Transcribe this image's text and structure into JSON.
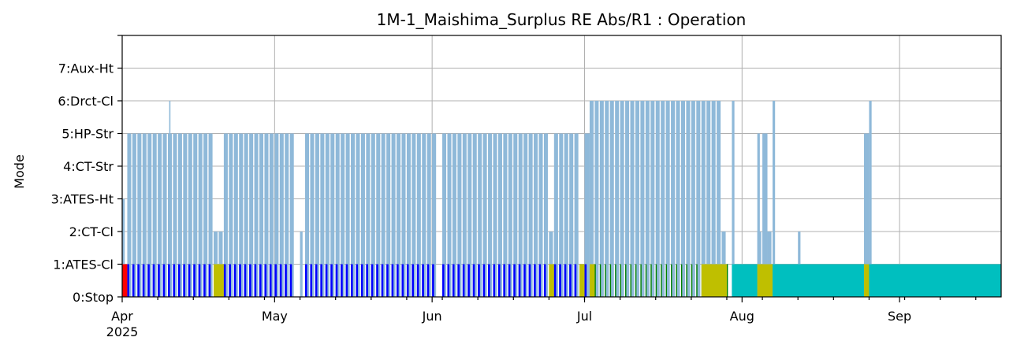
{
  "chart_data": {
    "type": "bar",
    "title": "1M-1_Maishima_Surplus RE Abs/R1 : Operation",
    "xlabel": "",
    "ylabel": "Mode",
    "ylim": [
      0,
      8
    ],
    "xlim": [
      "2025-04-01",
      "2025-09-21"
    ],
    "grid": true,
    "y_ticks": [
      {
        "value": 0,
        "label": "0:Stop"
      },
      {
        "value": 1,
        "label": "1:ATES-Cl"
      },
      {
        "value": 2,
        "label": "2:CT-Cl"
      },
      {
        "value": 3,
        "label": "3:ATES-Ht"
      },
      {
        "value": 4,
        "label": "4:CT-Str"
      },
      {
        "value": 5,
        "label": "5:HP-Str"
      },
      {
        "value": 6,
        "label": "6:Drct-Cl"
      },
      {
        "value": 7,
        "label": "7:Aux-Ht"
      }
    ],
    "x_ticks": [
      {
        "date": "2025-04-01",
        "label": "Apr",
        "sublabel": "2025"
      },
      {
        "date": "2025-05-01",
        "label": "May",
        "sublabel": ""
      },
      {
        "date": "2025-06-01",
        "label": "Jun",
        "sublabel": ""
      },
      {
        "date": "2025-07-01",
        "label": "Jul",
        "sublabel": ""
      },
      {
        "date": "2025-08-01",
        "label": "Aug",
        "sublabel": ""
      },
      {
        "date": "2025-09-01",
        "label": "Sep",
        "sublabel": ""
      }
    ],
    "colors": {
      "operation_fill": "#8fb9d9",
      "red": "#ff0000",
      "blue": "#0000ff",
      "olive": "#bfbf00",
      "green": "#008000",
      "cyan": "#00bfbf"
    },
    "series": [
      {
        "mode_blocks": [
          {
            "start": "2025-04-01",
            "end": "2025-04-01T12:00",
            "mode": 3
          },
          {
            "start": "2025-04-02",
            "end": "2025-04-11",
            "mode": 5
          },
          {
            "start": "2025-04-10T06:00",
            "end": "2025-04-10T12:00",
            "mode": 6
          },
          {
            "start": "2025-04-11",
            "end": "2025-04-19",
            "mode": 5
          },
          {
            "start": "2025-04-19",
            "end": "2025-04-21",
            "mode": 2
          },
          {
            "start": "2025-04-21",
            "end": "2025-05-05",
            "mode": 5
          },
          {
            "start": "2025-05-06",
            "end": "2025-05-06T12:00",
            "mode": 2
          },
          {
            "start": "2025-05-07",
            "end": "2025-06-02",
            "mode": 5
          },
          {
            "start": "2025-06-03",
            "end": "2025-06-24",
            "mode": 5
          },
          {
            "start": "2025-06-24",
            "end": "2025-06-30",
            "mode": 2
          },
          {
            "start": "2025-06-25",
            "end": "2025-06-30",
            "mode": 5
          },
          {
            "start": "2025-07-01",
            "end": "2025-07-02",
            "mode": 5
          },
          {
            "start": "2025-07-02",
            "end": "2025-07-08",
            "mode": 6
          },
          {
            "start": "2025-07-08",
            "end": "2025-07-24",
            "mode": 6
          },
          {
            "start": "2025-07-24",
            "end": "2025-07-29",
            "mode": 2
          },
          {
            "start": "2025-07-24",
            "end": "2025-07-28",
            "mode": 6
          },
          {
            "start": "2025-07-30",
            "end": "2025-07-30T12:00",
            "mode": 6
          },
          {
            "start": "2025-08-04",
            "end": "2025-08-07",
            "mode": 2
          },
          {
            "start": "2025-08-04",
            "end": "2025-08-04T12:00",
            "mode": 5
          },
          {
            "start": "2025-08-05",
            "end": "2025-08-06",
            "mode": 5
          },
          {
            "start": "2025-08-07",
            "end": "2025-08-07T12:00",
            "mode": 6
          },
          {
            "start": "2025-08-12",
            "end": "2025-08-12T12:00",
            "mode": 2
          },
          {
            "start": "2025-08-25",
            "end": "2025-08-26",
            "mode": 5
          },
          {
            "start": "2025-08-25",
            "end": "2025-08-26",
            "mode": 2
          },
          {
            "start": "2025-08-26",
            "end": "2025-08-26T12:00",
            "mode": 6
          }
        ],
        "bottom_strip": [
          {
            "start": "2025-04-01",
            "end": "2025-04-02",
            "color": "red"
          },
          {
            "start": "2025-04-02",
            "end": "2025-04-19",
            "color": "blue"
          },
          {
            "start": "2025-04-19",
            "end": "2025-04-21",
            "color": "olive"
          },
          {
            "start": "2025-04-21",
            "end": "2025-05-05",
            "color": "blue"
          },
          {
            "start": "2025-05-07",
            "end": "2025-06-02",
            "color": "blue"
          },
          {
            "start": "2025-06-03",
            "end": "2025-06-24",
            "color": "blue"
          },
          {
            "start": "2025-06-24",
            "end": "2025-06-25",
            "color": "olive"
          },
          {
            "start": "2025-06-25",
            "end": "2025-06-30",
            "color": "blue"
          },
          {
            "start": "2025-06-30",
            "end": "2025-07-01",
            "color": "olive"
          },
          {
            "start": "2025-07-01",
            "end": "2025-07-02",
            "color": "blue"
          },
          {
            "start": "2025-07-02",
            "end": "2025-07-03",
            "color": "olive"
          },
          {
            "start": "2025-07-03",
            "end": "2025-07-24",
            "color": "green"
          },
          {
            "start": "2025-07-24",
            "end": "2025-07-29",
            "color": "olive"
          },
          {
            "start": "2025-07-29",
            "end": "2025-07-30",
            "color": "green"
          },
          {
            "start": "2025-07-30",
            "end": "2025-08-04",
            "color": "cyan"
          },
          {
            "start": "2025-08-04",
            "end": "2025-08-07",
            "color": "olive"
          },
          {
            "start": "2025-08-07",
            "end": "2025-08-25",
            "color": "cyan"
          },
          {
            "start": "2025-08-25",
            "end": "2025-08-26",
            "color": "olive"
          },
          {
            "start": "2025-08-26",
            "end": "2025-09-21",
            "color": "cyan"
          }
        ]
      }
    ]
  }
}
